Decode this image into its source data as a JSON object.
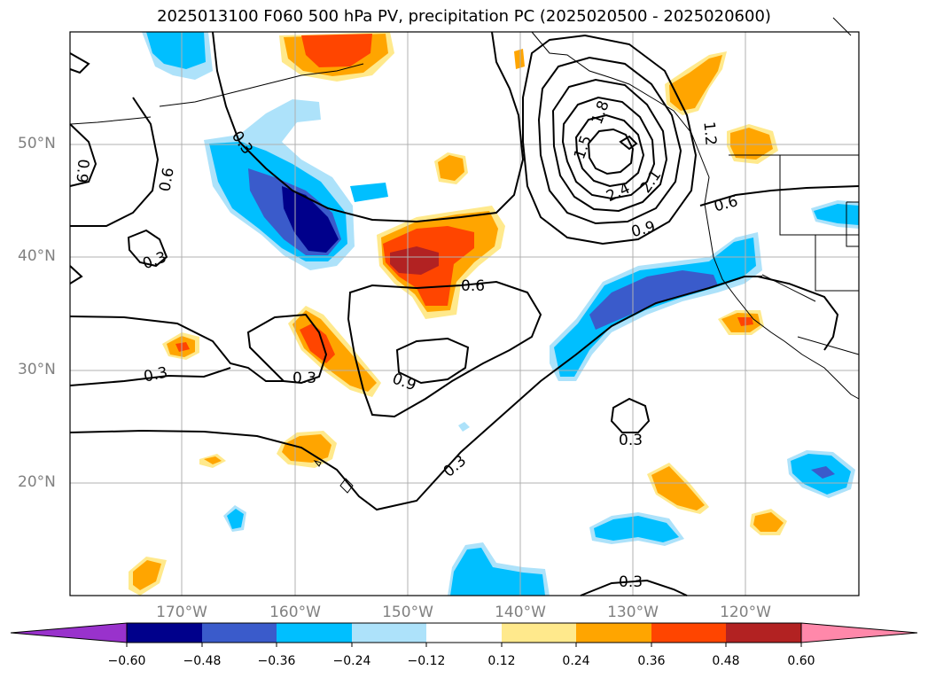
{
  "title": "2025013100 F060 500 hPa PV, precipitation PC (2025020500 - 2025020600)",
  "lat_labels": [
    "50°N",
    "40°N",
    "30°N",
    "20°N"
  ],
  "lon_labels": [
    "170°W",
    "160°W",
    "150°W",
    "140°W",
    "130°W",
    "120°W"
  ],
  "colorbar": {
    "ticks": [
      "−0.60",
      "−0.48",
      "−0.36",
      "−0.24",
      "−0.12",
      "0.12",
      "0.24",
      "0.36",
      "0.48",
      "0.60"
    ],
    "colors": [
      "#9932CC",
      "#00008B",
      "#3A5BCB",
      "#00BFFF",
      "#ADE2FA",
      "#FFFFFF",
      "#FFE98C",
      "#FFA500",
      "#FF4500",
      "#B22222",
      "#FF88AA"
    ]
  },
  "contour_labels": [
    "0.3",
    "0.3",
    "0.3",
    "0.3",
    "0.3",
    "0.3",
    "0.3",
    "0.6",
    "0.6",
    "0.6",
    "0.9",
    "0.9",
    "0.9",
    "1.2",
    "1.5",
    "1.8",
    "2.1",
    "2.4"
  ],
  "colors": {
    "dark_blue": "#00008B",
    "mid_blue": "#3A5BCB",
    "blue": "#00BFFF",
    "light_blue": "#ADE2FA",
    "yellow": "#FFE98C",
    "orange": "#FFA500",
    "red_orange": "#FF4500",
    "dark_red": "#B22222",
    "gridline": "#b0b0b0",
    "axis_label": "#808080"
  }
}
